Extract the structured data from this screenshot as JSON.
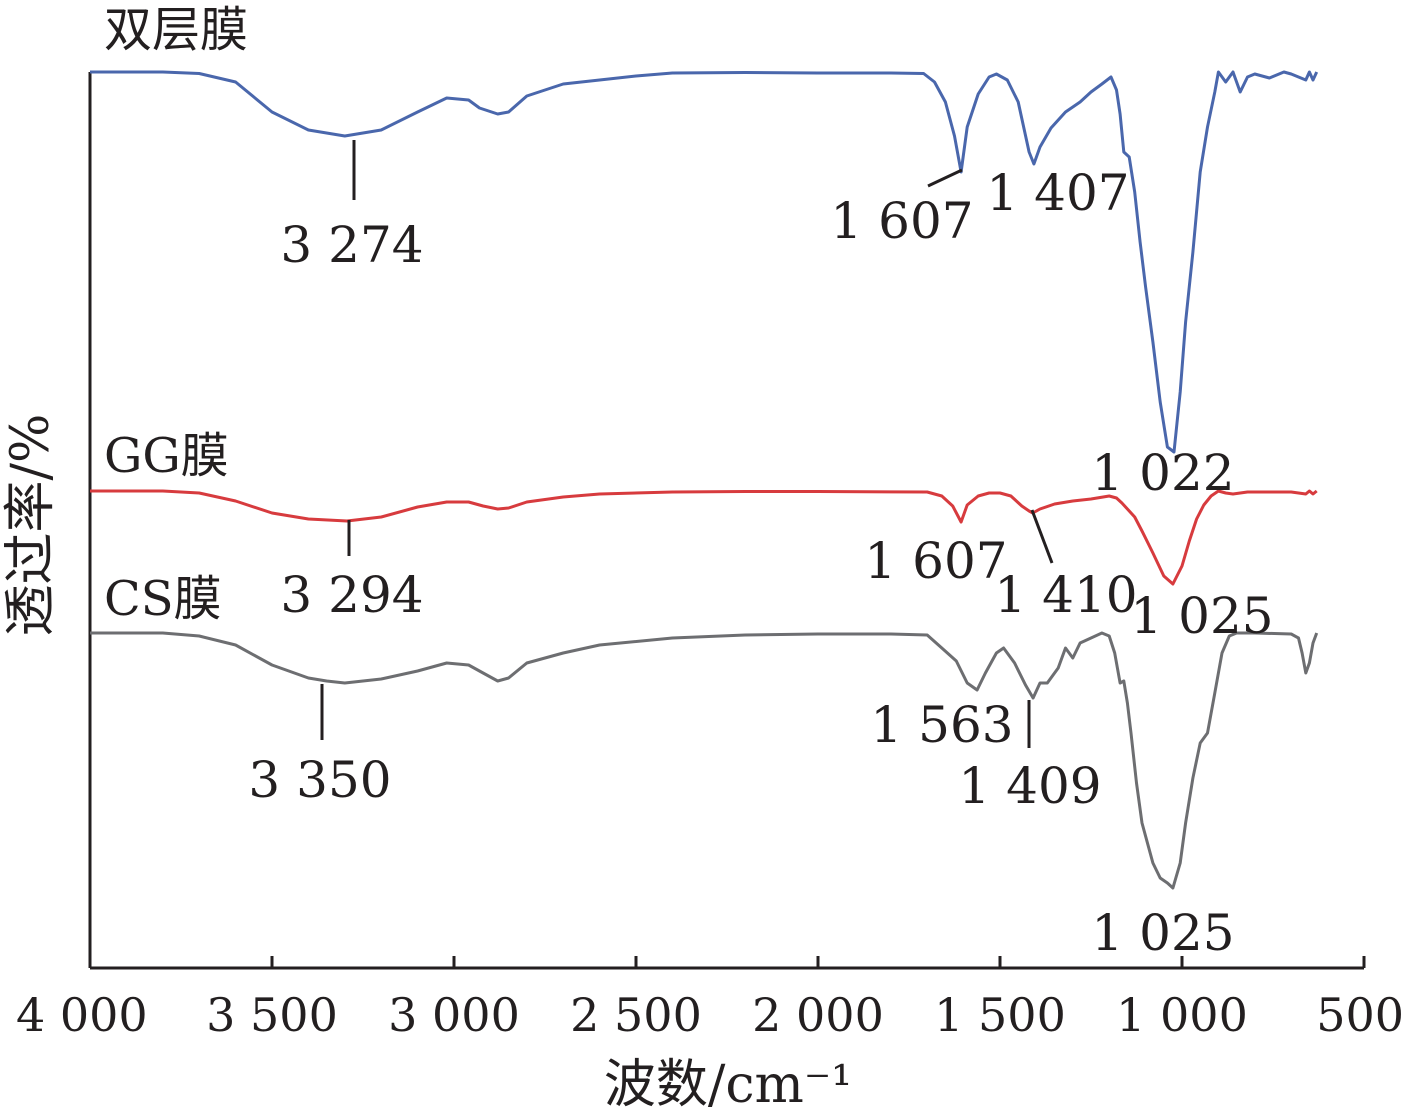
{
  "chart_data": {
    "type": "line",
    "xlabel": "波数/cm⁻¹",
    "ylabel": "透过率/%",
    "xlim": [
      4000,
      500
    ],
    "x_ticks": [
      4000,
      3500,
      3000,
      2500,
      2000,
      1500,
      1000,
      500
    ],
    "x_tick_labels": [
      "4 000",
      "3 500",
      "3 000",
      "2 500",
      "2 000",
      "1 500",
      "1 000",
      "500"
    ],
    "grid": false,
    "series": [
      {
        "name": "双层膜",
        "color": "#4a67ac",
        "points": [
          [
            4000,
            0.0
          ],
          [
            3800,
            0.0
          ],
          [
            3700,
            -1.5
          ],
          [
            3600,
            -10
          ],
          [
            3500,
            -40
          ],
          [
            3400,
            -58
          ],
          [
            3300,
            -64
          ],
          [
            3200,
            -58
          ],
          [
            3100,
            -40
          ],
          [
            3020,
            -26
          ],
          [
            2960,
            -28
          ],
          [
            2930,
            -36
          ],
          [
            2880,
            -42
          ],
          [
            2850,
            -40
          ],
          [
            2800,
            -24
          ],
          [
            2700,
            -12
          ],
          [
            2600,
            -8
          ],
          [
            2500,
            -4
          ],
          [
            2400,
            -1
          ],
          [
            2200,
            -0.5
          ],
          [
            2000,
            -1
          ],
          [
            1800,
            -1
          ],
          [
            1710,
            -1.5
          ],
          [
            1680,
            -10
          ],
          [
            1650,
            -30
          ],
          [
            1625,
            -64
          ],
          [
            1607,
            -100
          ],
          [
            1590,
            -55
          ],
          [
            1560,
            -22
          ],
          [
            1530,
            -5
          ],
          [
            1510,
            -2
          ],
          [
            1480,
            -8
          ],
          [
            1450,
            -30
          ],
          [
            1420,
            -80
          ],
          [
            1407,
            -92
          ],
          [
            1390,
            -75
          ],
          [
            1360,
            -56
          ],
          [
            1320,
            -40
          ],
          [
            1280,
            -30
          ],
          [
            1250,
            -20
          ],
          [
            1220,
            -12
          ],
          [
            1195,
            -5
          ],
          [
            1180,
            -18
          ],
          [
            1170,
            -42
          ],
          [
            1160,
            -80
          ],
          [
            1145,
            -85
          ],
          [
            1130,
            -120
          ],
          [
            1115,
            -170
          ],
          [
            1100,
            -215
          ],
          [
            1080,
            -270
          ],
          [
            1060,
            -330
          ],
          [
            1040,
            -375
          ],
          [
            1022,
            -380
          ],
          [
            1005,
            -320
          ],
          [
            990,
            -250
          ],
          [
            970,
            -180
          ],
          [
            950,
            -100
          ],
          [
            930,
            -55
          ],
          [
            910,
            -20
          ],
          [
            900,
            0
          ],
          [
            880,
            -10
          ],
          [
            860,
            0
          ],
          [
            840,
            -20
          ],
          [
            820,
            -5
          ],
          [
            800,
            -2
          ],
          [
            760,
            -6
          ],
          [
            720,
            0
          ],
          [
            700,
            -2
          ],
          [
            680,
            -5
          ],
          [
            660,
            -8
          ],
          [
            650,
            0
          ],
          [
            640,
            -8
          ],
          [
            630,
            0
          ]
        ]
      },
      {
        "name": "GG膜",
        "color": "#d73b3e",
        "points": [
          [
            4000,
            0.0
          ],
          [
            3800,
            0.0
          ],
          [
            3700,
            -2
          ],
          [
            3600,
            -10
          ],
          [
            3500,
            -22
          ],
          [
            3400,
            -28
          ],
          [
            3294,
            -30
          ],
          [
            3200,
            -26
          ],
          [
            3100,
            -16
          ],
          [
            3020,
            -11
          ],
          [
            2960,
            -11
          ],
          [
            2920,
            -15
          ],
          [
            2880,
            -18
          ],
          [
            2850,
            -17
          ],
          [
            2800,
            -11
          ],
          [
            2700,
            -6
          ],
          [
            2600,
            -3
          ],
          [
            2400,
            -1
          ],
          [
            2200,
            -0.5
          ],
          [
            2000,
            -0.5
          ],
          [
            1700,
            -1
          ],
          [
            1660,
            -5
          ],
          [
            1630,
            -15
          ],
          [
            1607,
            -31
          ],
          [
            1590,
            -14
          ],
          [
            1560,
            -5
          ],
          [
            1530,
            -2
          ],
          [
            1500,
            -2
          ],
          [
            1470,
            -5
          ],
          [
            1440,
            -15
          ],
          [
            1420,
            -20
          ],
          [
            1410,
            -22
          ],
          [
            1390,
            -18
          ],
          [
            1350,
            -13
          ],
          [
            1300,
            -10
          ],
          [
            1250,
            -8
          ],
          [
            1200,
            -5
          ],
          [
            1180,
            -7
          ],
          [
            1165,
            -12
          ],
          [
            1150,
            -18
          ],
          [
            1130,
            -26
          ],
          [
            1110,
            -40
          ],
          [
            1080,
            -62
          ],
          [
            1050,
            -85
          ],
          [
            1025,
            -93
          ],
          [
            1000,
            -75
          ],
          [
            980,
            -50
          ],
          [
            960,
            -28
          ],
          [
            940,
            -14
          ],
          [
            920,
            -5
          ],
          [
            900,
            0
          ],
          [
            880,
            -2
          ],
          [
            860,
            -3
          ],
          [
            820,
            -1
          ],
          [
            800,
            -1
          ],
          [
            700,
            -1
          ],
          [
            660,
            -3
          ],
          [
            650,
            0
          ],
          [
            640,
            -3
          ],
          [
            630,
            0
          ]
        ]
      },
      {
        "name": "CS膜",
        "color": "#6d6e71",
        "points": [
          [
            4000,
            0.0
          ],
          [
            3800,
            0.0
          ],
          [
            3700,
            -3
          ],
          [
            3600,
            -12
          ],
          [
            3500,
            -32
          ],
          [
            3400,
            -45
          ],
          [
            3350,
            -48
          ],
          [
            3300,
            -50
          ],
          [
            3200,
            -46
          ],
          [
            3100,
            -38
          ],
          [
            3020,
            -30
          ],
          [
            2960,
            -32
          ],
          [
            2920,
            -40
          ],
          [
            2880,
            -48
          ],
          [
            2850,
            -45
          ],
          [
            2800,
            -30
          ],
          [
            2700,
            -20
          ],
          [
            2600,
            -12
          ],
          [
            2400,
            -5
          ],
          [
            2200,
            -2
          ],
          [
            2000,
            -1
          ],
          [
            1800,
            -1
          ],
          [
            1700,
            -2
          ],
          [
            1660,
            -15
          ],
          [
            1620,
            -28
          ],
          [
            1590,
            -50
          ],
          [
            1563,
            -57
          ],
          [
            1540,
            -40
          ],
          [
            1510,
            -20
          ],
          [
            1490,
            -15
          ],
          [
            1460,
            -30
          ],
          [
            1430,
            -52
          ],
          [
            1409,
            -65
          ],
          [
            1390,
            -50
          ],
          [
            1370,
            -50
          ],
          [
            1340,
            -35
          ],
          [
            1320,
            -15
          ],
          [
            1300,
            -25
          ],
          [
            1280,
            -10
          ],
          [
            1250,
            -5
          ],
          [
            1220,
            0
          ],
          [
            1200,
            -3
          ],
          [
            1185,
            -20
          ],
          [
            1170,
            -50
          ],
          [
            1160,
            -48
          ],
          [
            1150,
            -70
          ],
          [
            1140,
            -100
          ],
          [
            1125,
            -150
          ],
          [
            1110,
            -190
          ],
          [
            1080,
            -230
          ],
          [
            1060,
            -245
          ],
          [
            1040,
            -250
          ],
          [
            1025,
            -255
          ],
          [
            1005,
            -230
          ],
          [
            990,
            -190
          ],
          [
            970,
            -145
          ],
          [
            950,
            -110
          ],
          [
            930,
            -100
          ],
          [
            910,
            -60
          ],
          [
            890,
            -20
          ],
          [
            870,
            -3
          ],
          [
            850,
            0
          ],
          [
            800,
            0
          ],
          [
            700,
            -1
          ],
          [
            680,
            -5
          ],
          [
            670,
            -20
          ],
          [
            660,
            -40
          ],
          [
            650,
            -30
          ],
          [
            640,
            -10
          ],
          [
            630,
            0
          ]
        ]
      }
    ],
    "peak_labels": [
      {
        "series": "双层膜",
        "text": "3 274"
      },
      {
        "series": "双层膜",
        "text": "1 607"
      },
      {
        "series": "双层膜",
        "text": "1 407"
      },
      {
        "series": "双层膜",
        "text": "1 022"
      },
      {
        "series": "GG膜",
        "text": "3 294"
      },
      {
        "series": "GG膜",
        "text": "1 607"
      },
      {
        "series": "GG膜",
        "text": "1 410"
      },
      {
        "series": "GG膜",
        "text": "1 025"
      },
      {
        "series": "CS膜",
        "text": "3 350"
      },
      {
        "series": "CS膜",
        "text": "1 563"
      },
      {
        "series": "CS膜",
        "text": "1 409"
      },
      {
        "series": "CS膜",
        "text": "1 025"
      }
    ]
  }
}
